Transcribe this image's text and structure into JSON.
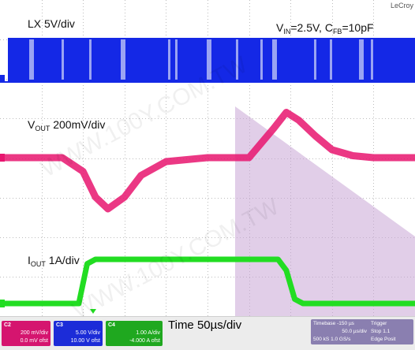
{
  "brand": "LeCroy",
  "labels": {
    "lx": "LX  5V/div",
    "vout_main": "V",
    "vout_sub": "OUT",
    "vout_rest": "  200mV/div",
    "iout_main": "I",
    "iout_sub": "OUT",
    "iout_rest": " 1A/div",
    "cond_vin": "V",
    "cond_vin_sub": "IN",
    "cond_vin_val": "=2.5V, C",
    "cond_cfb_sub": "FB",
    "cond_cfb_val": "=10pF",
    "time": "Time  50µs/div"
  },
  "watermark": "WWW.100Y.COM.TW",
  "colors": {
    "lx": "#1428e6",
    "vout": "#e8156f",
    "iout": "#22dd22",
    "shade": "#c9a6d6",
    "grid": "#bdbdbd"
  },
  "channels": [
    {
      "id": "C2",
      "head": "C2",
      "scale": "200 mV/div",
      "offset": "0.0 mV ofst",
      "color": "#d5156f"
    },
    {
      "id": "C3",
      "head": "C3",
      "scale": "5.00 V/div",
      "offset": "10.00 V ofst",
      "color": "#1c2cd8"
    },
    {
      "id": "C4",
      "head": "C4",
      "scale": "1.00 A/div",
      "offset": "-4.000 A ofst",
      "color": "#1fa81f"
    }
  ],
  "timebase": {
    "head": "Timebase",
    "offset": "-150 µs",
    "div": "50.0 µs/div",
    "samples": "500 kS",
    "rate": "1.0 GS/s"
  },
  "trigger": {
    "head": "Trigger",
    "mode": "Stop",
    "level": "1.1",
    "type": "Edge",
    "slope": "Posit"
  },
  "chart_data": {
    "type": "line",
    "x_unit": "µs",
    "x_per_div": 50,
    "x_divisions": 10,
    "series": [
      {
        "name": "LX",
        "scale_per_div": "5V/div",
        "shape": "switching burst, high ~5V"
      },
      {
        "name": "VOUT",
        "scale_per_div": "200mV/div",
        "x_div": [
          0,
          1.5,
          2.0,
          2.3,
          2.6,
          3.0,
          3.4,
          4.0,
          5.0,
          6.0,
          6.6,
          6.9,
          7.2,
          7.6,
          8.0,
          8.5,
          9.0,
          10
        ],
        "y_mV": [
          0,
          0,
          -70,
          -200,
          -260,
          -200,
          -90,
          -20,
          0,
          0,
          150,
          230,
          190,
          110,
          40,
          10,
          0,
          0
        ]
      },
      {
        "name": "IOUT",
        "scale_per_div": "1A/div",
        "x_div": [
          0,
          1.9,
          2.1,
          2.3,
          6.7,
          6.9,
          7.1,
          7.3,
          10
        ],
        "y_A": [
          0,
          0,
          1.8,
          2.0,
          2.0,
          1.5,
          0.2,
          0,
          0
        ]
      }
    ]
  }
}
